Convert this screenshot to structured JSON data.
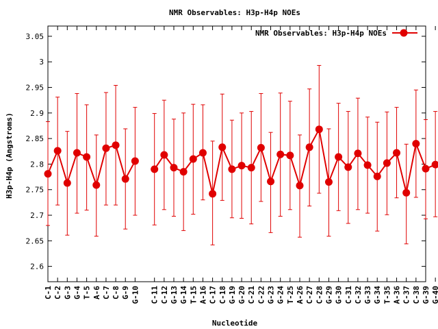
{
  "chart_data": {
    "type": "line",
    "title": "NMR Observables: H3p-H4p NOEs",
    "xlabel": "Nucleotide",
    "ylabel": "H3p-H4p (Angstroms)",
    "ylim": [
      2.57,
      3.07
    ],
    "yticks": [
      "3.05",
      "3",
      "2.95",
      "2.9",
      "2.85",
      "2.8",
      "2.75",
      "2.7",
      "2.65",
      "2.6"
    ],
    "grid": false,
    "legend_position": "top-right",
    "series_color": "#e00000",
    "series": [
      {
        "name": "NMR Observables: H3p-H4p NOEs",
        "segments": [
          {
            "categories": [
              "C-1",
              "C-2",
              "G-3",
              "G-4",
              "T-5",
              "A-6",
              "C-7",
              "C-8",
              "G-9",
              "G-10"
            ],
            "values": [
              2.781,
              2.826,
              2.763,
              2.822,
              2.814,
              2.759,
              2.831,
              2.837,
              2.771,
              2.806
            ],
            "err_low": [
              2.68,
              2.72,
              2.661,
              2.704,
              2.71,
              2.659,
              2.72,
              2.72,
              2.673,
              2.7
            ],
            "err_high": [
              2.883,
              2.931,
              2.864,
              2.938,
              2.916,
              2.857,
              2.94,
              2.954,
              2.869,
              2.911
            ]
          },
          {
            "categories": [
              "C-11",
              "C-12",
              "G-13",
              "G-14",
              "T-15",
              "A-16",
              "C-17",
              "C-18",
              "G-19",
              "G-20",
              "C-21",
              "C-22",
              "G-23",
              "G-24",
              "T-25",
              "A-26",
              "C-27",
              "C-28",
              "G-29",
              "G-30",
              "C-31",
              "C-32",
              "G-33",
              "G-34",
              "T-35",
              "A-36",
              "C-37",
              "C-38",
              "G-39",
              "G-40"
            ],
            "values": [
              2.79,
              2.818,
              2.793,
              2.785,
              2.81,
              2.822,
              2.742,
              2.833,
              2.79,
              2.797,
              2.793,
              2.832,
              2.766,
              2.819,
              2.817,
              2.758,
              2.833,
              2.868,
              2.765,
              2.814,
              2.794,
              2.821,
              2.798,
              2.776,
              2.802,
              2.822,
              2.744,
              2.84,
              2.791,
              2.799
            ],
            "err_low": [
              2.681,
              2.711,
              2.698,
              2.67,
              2.702,
              2.73,
              2.642,
              2.729,
              2.695,
              2.694,
              2.683,
              2.727,
              2.666,
              2.698,
              2.711,
              2.657,
              2.718,
              2.743,
              2.659,
              2.709,
              2.684,
              2.711,
              2.704,
              2.669,
              2.701,
              2.734,
              2.644,
              2.735,
              2.693,
              2.697
            ],
            "err_high": [
              2.899,
              2.925,
              2.888,
              2.9,
              2.917,
              2.916,
              2.845,
              2.937,
              2.886,
              2.9,
              2.903,
              2.938,
              2.862,
              2.939,
              2.923,
              2.857,
              2.947,
              2.993,
              2.869,
              2.919,
              2.903,
              2.929,
              2.892,
              2.882,
              2.902,
              2.911,
              2.839,
              2.945,
              2.887,
              2.903
            ]
          }
        ]
      }
    ]
  }
}
